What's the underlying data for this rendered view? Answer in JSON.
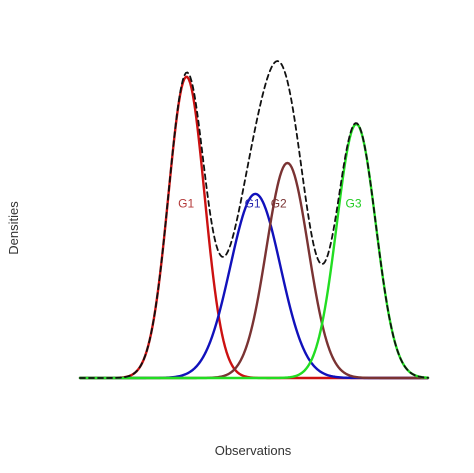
{
  "chart_data": {
    "type": "line",
    "xlabel": "Observations",
    "ylabel": "Densities",
    "xlim": [
      0,
      100
    ],
    "ylim": [
      0,
      1.05
    ],
    "grid": false,
    "legend": "none",
    "series": [
      {
        "key": "g1_red",
        "color": "#cc1111",
        "width": 2.4,
        "dash": false,
        "components": [
          {
            "weight": 0.936,
            "mean": 30.6,
            "sd": 5.2
          }
        ]
      },
      {
        "key": "g1_blue",
        "color": "#1111bb",
        "width": 2.4,
        "dash": false,
        "components": [
          {
            "weight": 0.572,
            "mean": 50.4,
            "sd": 7.2
          }
        ]
      },
      {
        "key": "g2_brown",
        "color": "#7a3333",
        "width": 2.4,
        "dash": false,
        "components": [
          {
            "weight": 0.668,
            "mean": 59.6,
            "sd": 6.0
          }
        ]
      },
      {
        "key": "g3_green",
        "color": "#22dd22",
        "width": 2.4,
        "dash": false,
        "components": [
          {
            "weight": 0.789,
            "mean": 79.4,
            "sd": 5.6
          }
        ]
      },
      {
        "key": "mixture",
        "color": "#111111",
        "width": 1.8,
        "dash": true,
        "components": [
          {
            "weight": 0.936,
            "mean": 30.6,
            "sd": 5.2
          },
          {
            "weight": 0.572,
            "mean": 50.4,
            "sd": 7.2
          },
          {
            "weight": 0.668,
            "mean": 59.6,
            "sd": 6.0
          },
          {
            "weight": 0.789,
            "mean": 79.4,
            "sd": 5.6
          }
        ]
      }
    ],
    "baseline": {
      "color": "#111111"
    },
    "annotations": [
      {
        "key": "label_g1_red",
        "text": "G1",
        "color": "#b43a3a",
        "x": 30.5,
        "y": 0.53
      },
      {
        "key": "label_g1_blue",
        "text": "G1",
        "color": "#2a2ab0",
        "x": 49.6,
        "y": 0.53
      },
      {
        "key": "label_g2",
        "text": "G2",
        "color": "#7a3333",
        "x": 57.1,
        "y": 0.53
      },
      {
        "key": "label_g3",
        "text": "G3",
        "color": "#22cc22",
        "x": 78.6,
        "y": 0.53
      }
    ]
  }
}
